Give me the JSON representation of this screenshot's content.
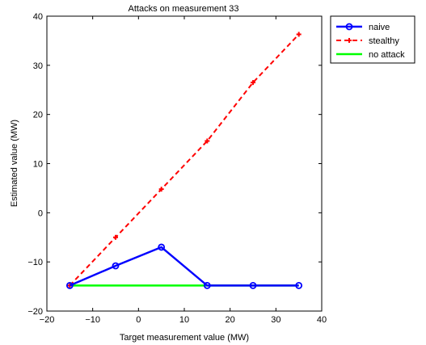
{
  "chart_data": {
    "type": "line",
    "title": "Attacks on measurement 33",
    "xlabel": "Target measurement value (MW)",
    "ylabel": "Estimated value (MW)",
    "xlim": [
      -20,
      40
    ],
    "ylim": [
      -20,
      40
    ],
    "xticks": [
      -20,
      -10,
      0,
      10,
      20,
      30,
      40
    ],
    "yticks": [
      -20,
      -10,
      0,
      10,
      20,
      30,
      40
    ],
    "grid": false,
    "legend_position": "outside-top-right",
    "x": [
      -15,
      -5,
      5,
      15,
      25,
      35
    ],
    "series": [
      {
        "name": "naive",
        "values": [
          -14.8,
          -10.8,
          -7,
          -14.8,
          -14.8,
          -14.8
        ],
        "color": "#0000ff",
        "line_style": "solid",
        "marker": "circle"
      },
      {
        "name": "stealthy",
        "values": [
          -14.8,
          -5,
          4.8,
          14.6,
          26.5,
          36.3
        ],
        "color": "#ff0000",
        "line_style": "dashed",
        "marker": "plus"
      },
      {
        "name": "no attack",
        "values": [
          -14.8,
          -14.8,
          -14.8,
          -14.8,
          -14.8,
          -14.8
        ],
        "color": "#00ff00",
        "line_style": "solid",
        "marker": "none"
      }
    ]
  }
}
